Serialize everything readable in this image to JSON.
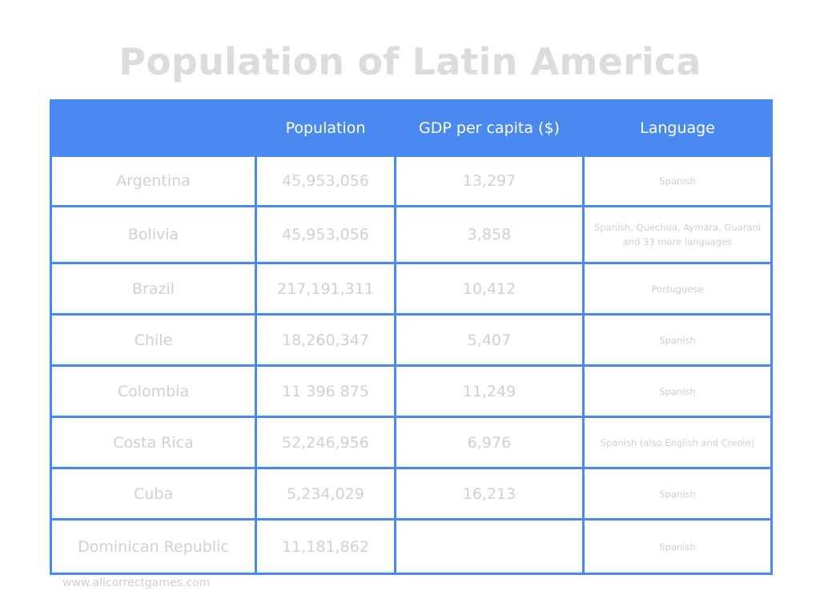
{
  "title": "Population of Latin America",
  "colors": {
    "accent": "#4a8af0",
    "text_muted": "#d0d0d0",
    "title": "#dcdcdc"
  },
  "table": {
    "headers": [
      "",
      "Population",
      "GDP per capita ($)",
      "Language"
    ],
    "rows": [
      {
        "country": "Argentina",
        "population": "45,953,056",
        "gdp": "13,297",
        "language": "Spanish"
      },
      {
        "country": "Bolivia",
        "population": "45,953,056",
        "gdp": "3,858",
        "language": "Spanish, Quechua, Aymara, Guarani and 33 more languages"
      },
      {
        "country": "Brazil",
        "population": "217,191,311",
        "gdp": "10,412",
        "language": "Portuguese"
      },
      {
        "country": "Chile",
        "population": "18,260,347",
        "gdp": "5,407",
        "language": "Spanish"
      },
      {
        "country": "Colombia",
        "population": "11 396 875",
        "gdp": "11,249",
        "language": "Spanish"
      },
      {
        "country": "Costa Rica",
        "population": "52,246,956",
        "gdp": "6,976",
        "language": "Spanish (also English and Creole)"
      },
      {
        "country": "Cuba",
        "population": "5,234,029",
        "gdp": "16,213",
        "language": "Spanish"
      },
      {
        "country": "Dominican Republic",
        "population": "11,181,862",
        "gdp": "",
        "language": "Spanish"
      }
    ]
  },
  "footer": "www.allcorrectgames.com"
}
